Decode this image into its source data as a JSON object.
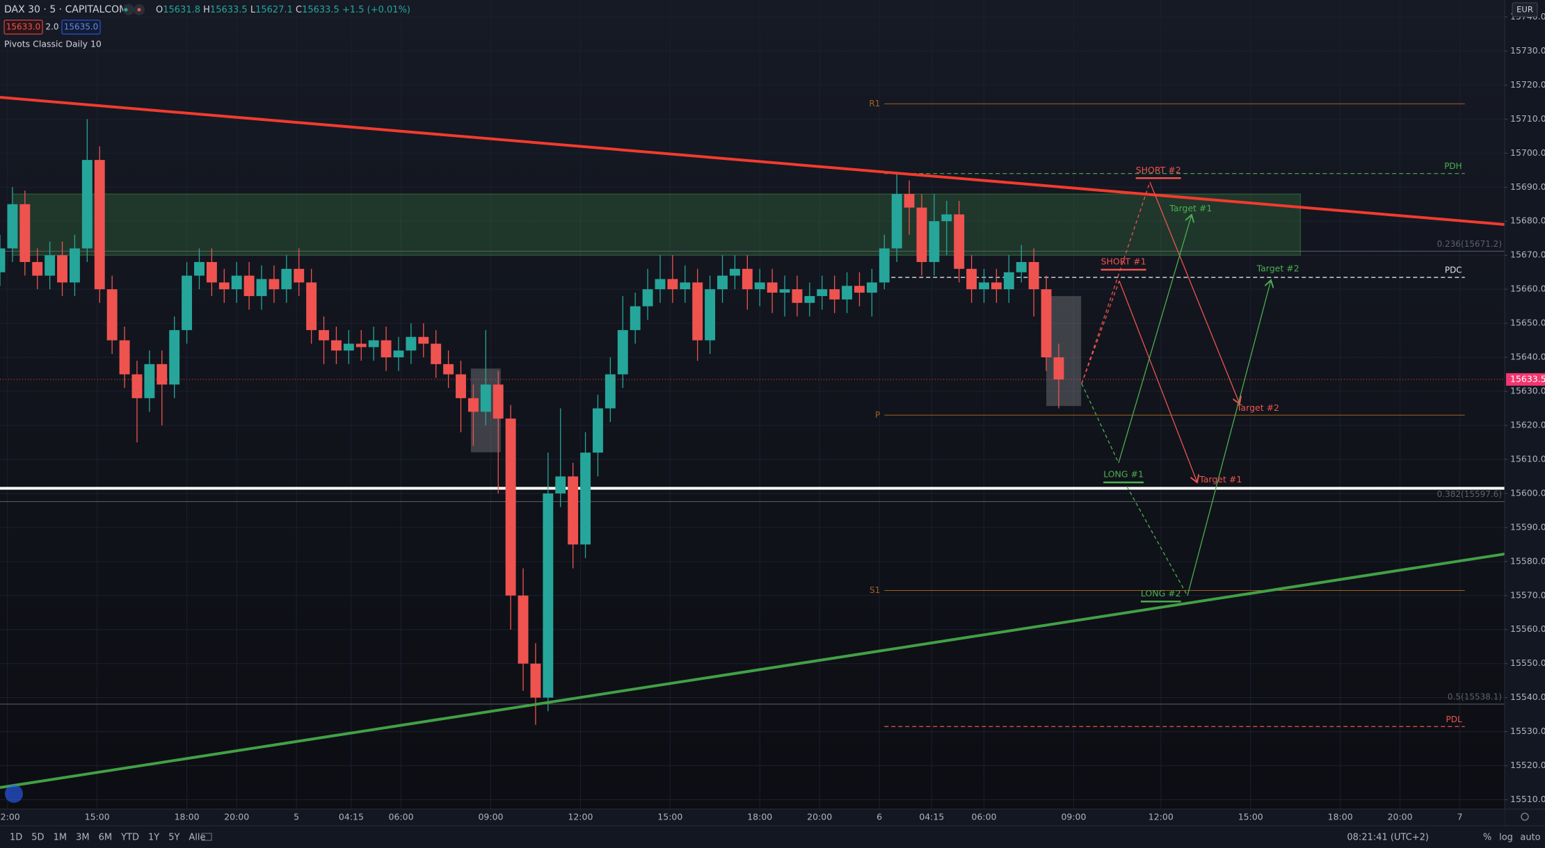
{
  "header": {
    "symbol": "DAX 30 · 5 · CAPITALCOM",
    "ohlc": [
      {
        "label": "O",
        "value": 15631.8
      },
      {
        "label": "H",
        "value": 15633.5
      },
      {
        "label": "L",
        "value": 15627.1
      },
      {
        "label": "C",
        "value": 15633.5
      }
    ],
    "change": "+1.5 (+0.01%)",
    "sell": "15633.0",
    "spread": "2.0",
    "buy": "15635.0",
    "indicator": "Pivots Classic Daily 10",
    "currency": "EUR"
  },
  "chart": {
    "xlim": [
      0,
      604
    ],
    "ylim": [
      15507.25,
      15745
    ],
    "last_price": 15633.5,
    "yticks": [
      {
        "value": 15510,
        "label": "15510.0"
      },
      {
        "value": 15520,
        "label": "15520.0"
      },
      {
        "value": 15530,
        "label": "15530.0"
      },
      {
        "value": 15540,
        "label": "15540.0"
      },
      {
        "value": 15550,
        "label": "15550.0"
      },
      {
        "value": 15560,
        "label": "15560.0"
      },
      {
        "value": 15570,
        "label": "15570.0"
      },
      {
        "value": 15580,
        "label": "15580.0"
      },
      {
        "value": 15590,
        "label": "15590.0"
      },
      {
        "value": 15600,
        "label": "15600.0"
      },
      {
        "value": 15610,
        "label": "15610.0"
      },
      {
        "value": 15620,
        "label": "15620.0"
      },
      {
        "value": 15630,
        "label": "15630.0"
      },
      {
        "value": 15640,
        "label": "15640.0"
      },
      {
        "value": 15650,
        "label": "15650.0"
      },
      {
        "value": 15660,
        "label": "15660.0"
      },
      {
        "value": 15670,
        "label": "15670.0"
      },
      {
        "value": 15680,
        "label": "15680.0"
      },
      {
        "value": 15690,
        "label": "15690.0"
      },
      {
        "value": 15700,
        "label": "15700.0"
      },
      {
        "value": 15710,
        "label": "15710.0"
      },
      {
        "value": 15720,
        "label": "15720.0"
      },
      {
        "value": 15730,
        "label": "15730.0"
      },
      {
        "value": 15740,
        "label": "15740.0"
      }
    ],
    "xticks": [
      {
        "value": 3,
        "label": "12:00"
      },
      {
        "value": 39,
        "label": "15:00"
      },
      {
        "value": 75,
        "label": "18:00"
      },
      {
        "value": 95,
        "label": "20:00"
      },
      {
        "value": 119,
        "label": "5"
      },
      {
        "value": 141,
        "label": "04:15"
      },
      {
        "value": 161,
        "label": "06:00"
      },
      {
        "value": 197,
        "label": "09:00"
      },
      {
        "value": 233,
        "label": "12:00"
      },
      {
        "value": 269,
        "label": "15:00"
      },
      {
        "value": 305,
        "label": "18:00"
      },
      {
        "value": 329,
        "label": "20:00"
      },
      {
        "value": 353,
        "label": "6"
      },
      {
        "value": 374,
        "label": "04:15"
      },
      {
        "value": 395,
        "label": "06:00"
      },
      {
        "value": 431,
        "label": "09:00"
      },
      {
        "value": 466,
        "label": "12:00"
      },
      {
        "value": 502,
        "label": "15:00"
      },
      {
        "value": 538,
        "label": "18:00"
      },
      {
        "value": 562,
        "label": "20:00"
      },
      {
        "value": 586,
        "label": "7"
      }
    ],
    "candles": {
      "x": [
        0,
        5,
        10,
        15,
        20,
        25,
        30,
        35,
        40,
        45,
        50,
        55,
        60,
        65,
        70,
        75,
        80,
        85,
        90,
        95,
        100,
        105,
        110,
        115,
        120,
        125,
        130,
        135,
        140,
        145,
        150,
        155,
        160,
        165,
        170,
        175,
        180,
        185,
        190,
        195,
        200,
        205,
        210,
        215,
        220,
        225,
        230,
        235,
        240,
        245,
        250,
        255,
        260,
        265,
        270,
        275,
        280,
        285,
        290,
        295,
        300,
        305,
        310,
        315,
        320,
        325,
        330,
        335,
        340,
        345,
        350,
        355,
        360,
        365,
        370,
        375,
        380,
        385,
        390,
        395,
        400,
        405,
        410,
        415,
        420,
        425
      ],
      "open": [
        15665,
        15672,
        15685,
        15668,
        15664,
        15670,
        15662,
        15672,
        15698,
        15660,
        15645,
        15635,
        15628,
        15638,
        15632,
        15648,
        15664,
        15668,
        15662,
        15660,
        15664,
        15658,
        15663,
        15660,
        15666,
        15662,
        15648,
        15645,
        15642,
        15644,
        15643,
        15645,
        15640,
        15642,
        15646,
        15644,
        15638,
        15635,
        15628,
        15624,
        15632,
        15622,
        15570,
        15550,
        15540,
        15600,
        15605,
        15585,
        15612,
        15625,
        15635,
        15648,
        15655,
        15660,
        15663,
        15660,
        15662,
        15645,
        15660,
        15664,
        15666,
        15660,
        15662,
        15659,
        15660,
        15656,
        15658,
        15660,
        15657,
        15661,
        15659,
        15662,
        15672,
        15688,
        15684,
        15668,
        15680,
        15682,
        15666,
        15660,
        15662,
        15660,
        15665,
        15668,
        15660,
        15640
      ],
      "high": [
        15676,
        15690,
        15689,
        15672,
        15674,
        15674,
        15676,
        15710,
        15702,
        15664,
        15649,
        15639,
        15642,
        15642,
        15652,
        15668,
        15672,
        15672,
        15666,
        15668,
        15668,
        15667,
        15667,
        15670,
        15672,
        15666,
        15652,
        15649,
        15648,
        15648,
        15649,
        15649,
        15646,
        15650,
        15650,
        15648,
        15642,
        15639,
        15632,
        15648,
        15636,
        15626,
        15578,
        15556,
        15612,
        15625,
        15609,
        15618,
        15629,
        15640,
        15658,
        15659,
        15666,
        15670,
        15670,
        15667,
        15666,
        15664,
        15670,
        15670,
        15670,
        15666,
        15666,
        15664,
        15664,
        15662,
        15664,
        15664,
        15665,
        15665,
        15666,
        15676,
        15694,
        15692,
        15688,
        15688,
        15686,
        15686,
        15670,
        15666,
        15666,
        15670,
        15673,
        15672,
        15664,
        15644
      ],
      "low": [
        15661,
        15668,
        15664,
        15660,
        15660,
        15658,
        15658,
        15668,
        15656,
        15641,
        15631,
        15615,
        15624,
        15620,
        15628,
        15644,
        15660,
        15658,
        15656,
        15656,
        15654,
        15654,
        15656,
        15656,
        15658,
        15644,
        15638,
        15638,
        15638,
        15639,
        15639,
        15636,
        15636,
        15638,
        15640,
        15634,
        15631,
        15618,
        15614,
        15620,
        15600,
        15560,
        15542,
        15532,
        15536,
        15596,
        15578,
        15581,
        15605,
        15621,
        15631,
        15644,
        15651,
        15656,
        15656,
        15656,
        15639,
        15641,
        15656,
        15660,
        15654,
        15655,
        15653,
        15652,
        15652,
        15652,
        15654,
        15653,
        15653,
        15655,
        15652,
        15660,
        15668,
        15676,
        15664,
        15664,
        15670,
        15662,
        15656,
        15656,
        15656,
        15656,
        15662,
        15652,
        15636,
        15625
      ],
      "close": [
        15672,
        15685,
        15668,
        15664,
        15670,
        15662,
        15672,
        15698,
        15660,
        15645,
        15635,
        15628,
        15638,
        15632,
        15648,
        15664,
        15668,
        15662,
        15660,
        15664,
        15658,
        15663,
        15660,
        15666,
        15662,
        15648,
        15645,
        15642,
        15644,
        15643,
        15645,
        15640,
        15642,
        15646,
        15644,
        15638,
        15635,
        15628,
        15624,
        15632,
        15622,
        15570,
        15550,
        15540,
        15600,
        15605,
        15585,
        15612,
        15625,
        15635,
        15648,
        15655,
        15660,
        15663,
        15660,
        15662,
        15645,
        15660,
        15664,
        15666,
        15660,
        15662,
        15659,
        15660,
        15656,
        15658,
        15660,
        15657,
        15661,
        15659,
        15662,
        15672,
        15688,
        15684,
        15668,
        15680,
        15682,
        15666,
        15660,
        15662,
        15660,
        15665,
        15668,
        15660,
        15640,
        15633.5
      ]
    },
    "zone": {
      "x0": 5,
      "x1": 522,
      "low": 15670,
      "high": 15688
    },
    "boxes": [
      {
        "x0": 189,
        "x1": 201,
        "low": 15612.1,
        "high": 15636.7
      },
      {
        "x0": 420,
        "x1": 434,
        "low": 15625.7,
        "high": 15658
      }
    ],
    "levels": [
      {
        "label": "R1",
        "value": 15714.5,
        "x0": 355,
        "x1": 588,
        "color": "#a0621e",
        "style": "solid",
        "width": 1,
        "label_pos": "left"
      },
      {
        "label": "P",
        "value": 15623,
        "x0": 355,
        "x1": 588,
        "color": "#a0621e",
        "style": "solid",
        "width": 1,
        "label_pos": "left"
      },
      {
        "label": "S1",
        "value": 15571.5,
        "x0": 355,
        "x1": 588,
        "color": "#a0621e",
        "style": "solid",
        "width": 1,
        "label_pos": "left"
      },
      {
        "label": "PDH",
        "value": 15694,
        "x0": 355,
        "x1": 588,
        "color": "#4caf50",
        "style": "dashed",
        "width": 1.2,
        "label_pos": "right"
      },
      {
        "label": "PDC",
        "value": 15663.5,
        "x0": 355,
        "x1": 588,
        "color": "#e0e3eb",
        "style": "dashed",
        "width": 1.4,
        "label_pos": "right"
      },
      {
        "label": "PDL",
        "value": 15531.5,
        "x0": 355,
        "x1": 588,
        "color": "#ef5350",
        "style": "dashed",
        "width": 1.2,
        "label_pos": "right"
      },
      {
        "label": "0.236(15671.2)",
        "value": 15671.2,
        "x0": 0,
        "x1": 604,
        "color": "#5d606b",
        "style": "solid",
        "width": 1,
        "label_pos": "right"
      },
      {
        "label": "0.382(15597.6)",
        "value": 15597.6,
        "x0": 0,
        "x1": 604,
        "color": "#5d606b",
        "style": "solid",
        "width": 1,
        "label_pos": "right"
      },
      {
        "label": "0.5(15538.1)",
        "value": 15538.1,
        "x0": 0,
        "x1": 604,
        "color": "#5d606b",
        "style": "solid",
        "width": 1,
        "label_pos": "right"
      },
      {
        "value": 15601.5,
        "x0": 0,
        "x1": 604,
        "color": "#ffffff",
        "style": "solid",
        "width": 4
      }
    ],
    "annotations": [
      {
        "label": "SHORT #2",
        "x": 465,
        "price": 15694.9,
        "color": "#ef5350",
        "underline": true
      },
      {
        "label": "SHORT #1",
        "x": 451,
        "price": 15668,
        "color": "#ef5350",
        "underline": true
      },
      {
        "label": "Target #1",
        "x": 478,
        "price": 15683.6,
        "color": "#4caf50",
        "underline": false
      },
      {
        "label": "Target #2",
        "x": 513,
        "price": 15666,
        "color": "#4caf50",
        "underline": false
      },
      {
        "label": "Target #2",
        "x": 505,
        "price": 15625,
        "color": "#ef5350",
        "underline": false
      },
      {
        "label": "Target #1",
        "x": 490,
        "price": 15604,
        "color": "#ef5350",
        "underline": false
      },
      {
        "label": "LONG #1",
        "x": 451,
        "price": 15605.5,
        "color": "#4caf50",
        "underline": true
      },
      {
        "label": "LONG #2",
        "x": 466,
        "price": 15570.5,
        "color": "#4caf50",
        "underline": true
      }
    ]
  },
  "footer": {
    "periods": [
      "1D",
      "5D",
      "1M",
      "3M",
      "6M",
      "YTD",
      "1Y",
      "5Y",
      "Alle"
    ],
    "clock": "08:21:41 (UTC+2)",
    "percent": "%",
    "log": "log",
    "auto": "auto"
  }
}
